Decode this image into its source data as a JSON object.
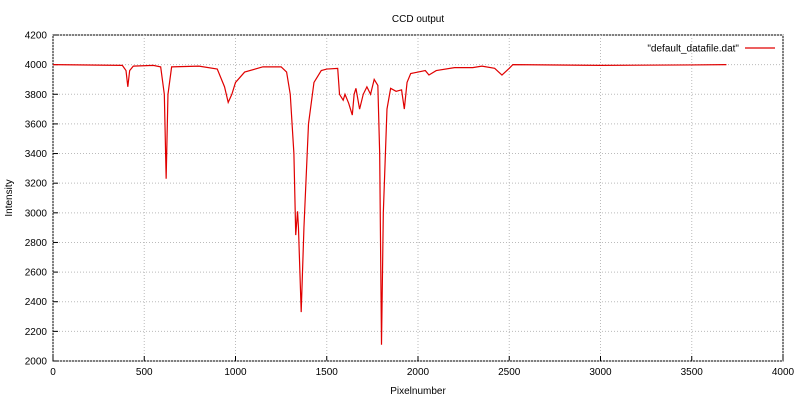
{
  "chart_data": {
    "type": "line",
    "title": "CCD output",
    "x_label": "Pixelnumber",
    "y_label": "Intensity",
    "xlim": [
      0,
      4000
    ],
    "xticks": [
      0,
      500,
      1000,
      1500,
      2000,
      2500,
      3000,
      3500,
      4000
    ],
    "ylim": [
      2000,
      4200
    ],
    "yticks": [
      2000,
      2200,
      2400,
      2600,
      2800,
      3000,
      3200,
      3400,
      3600,
      3800,
      4000,
      4200
    ],
    "grid": true,
    "legend": "top-right",
    "series": [
      {
        "name": "\"default_datafile.dat\"",
        "color": "#e00000",
        "x": [
          0,
          380,
          400,
          410,
          420,
          440,
          550,
          590,
          610,
          620,
          630,
          650,
          800,
          900,
          940,
          960,
          980,
          1000,
          1050,
          1150,
          1250,
          1280,
          1300,
          1320,
          1330,
          1340,
          1345,
          1360,
          1375,
          1400,
          1430,
          1470,
          1500,
          1560,
          1570,
          1590,
          1600,
          1620,
          1640,
          1650,
          1660,
          1680,
          1700,
          1720,
          1740,
          1760,
          1780,
          1790,
          1800,
          1810,
          1830,
          1850,
          1880,
          1910,
          1925,
          1940,
          1960,
          2000,
          2040,
          2060,
          2100,
          2200,
          2300,
          2350,
          2420,
          2460,
          2500,
          2520,
          3000,
          3500,
          3690
        ],
        "values": [
          4000,
          3995,
          3960,
          3850,
          3960,
          3990,
          3995,
          3985,
          3800,
          3230,
          3800,
          3985,
          3990,
          3970,
          3850,
          3745,
          3800,
          3880,
          3950,
          3985,
          3985,
          3950,
          3800,
          3400,
          2850,
          3010,
          2900,
          2330,
          2900,
          3600,
          3880,
          3960,
          3970,
          3975,
          3800,
          3760,
          3800,
          3740,
          3660,
          3800,
          3840,
          3700,
          3800,
          3850,
          3800,
          3900,
          3860,
          3400,
          2110,
          3000,
          3700,
          3840,
          3820,
          3830,
          3700,
          3880,
          3940,
          3950,
          3960,
          3930,
          3960,
          3980,
          3980,
          3990,
          3975,
          3930,
          3975,
          4000,
          3995,
          3998,
          4000
        ]
      }
    ]
  }
}
